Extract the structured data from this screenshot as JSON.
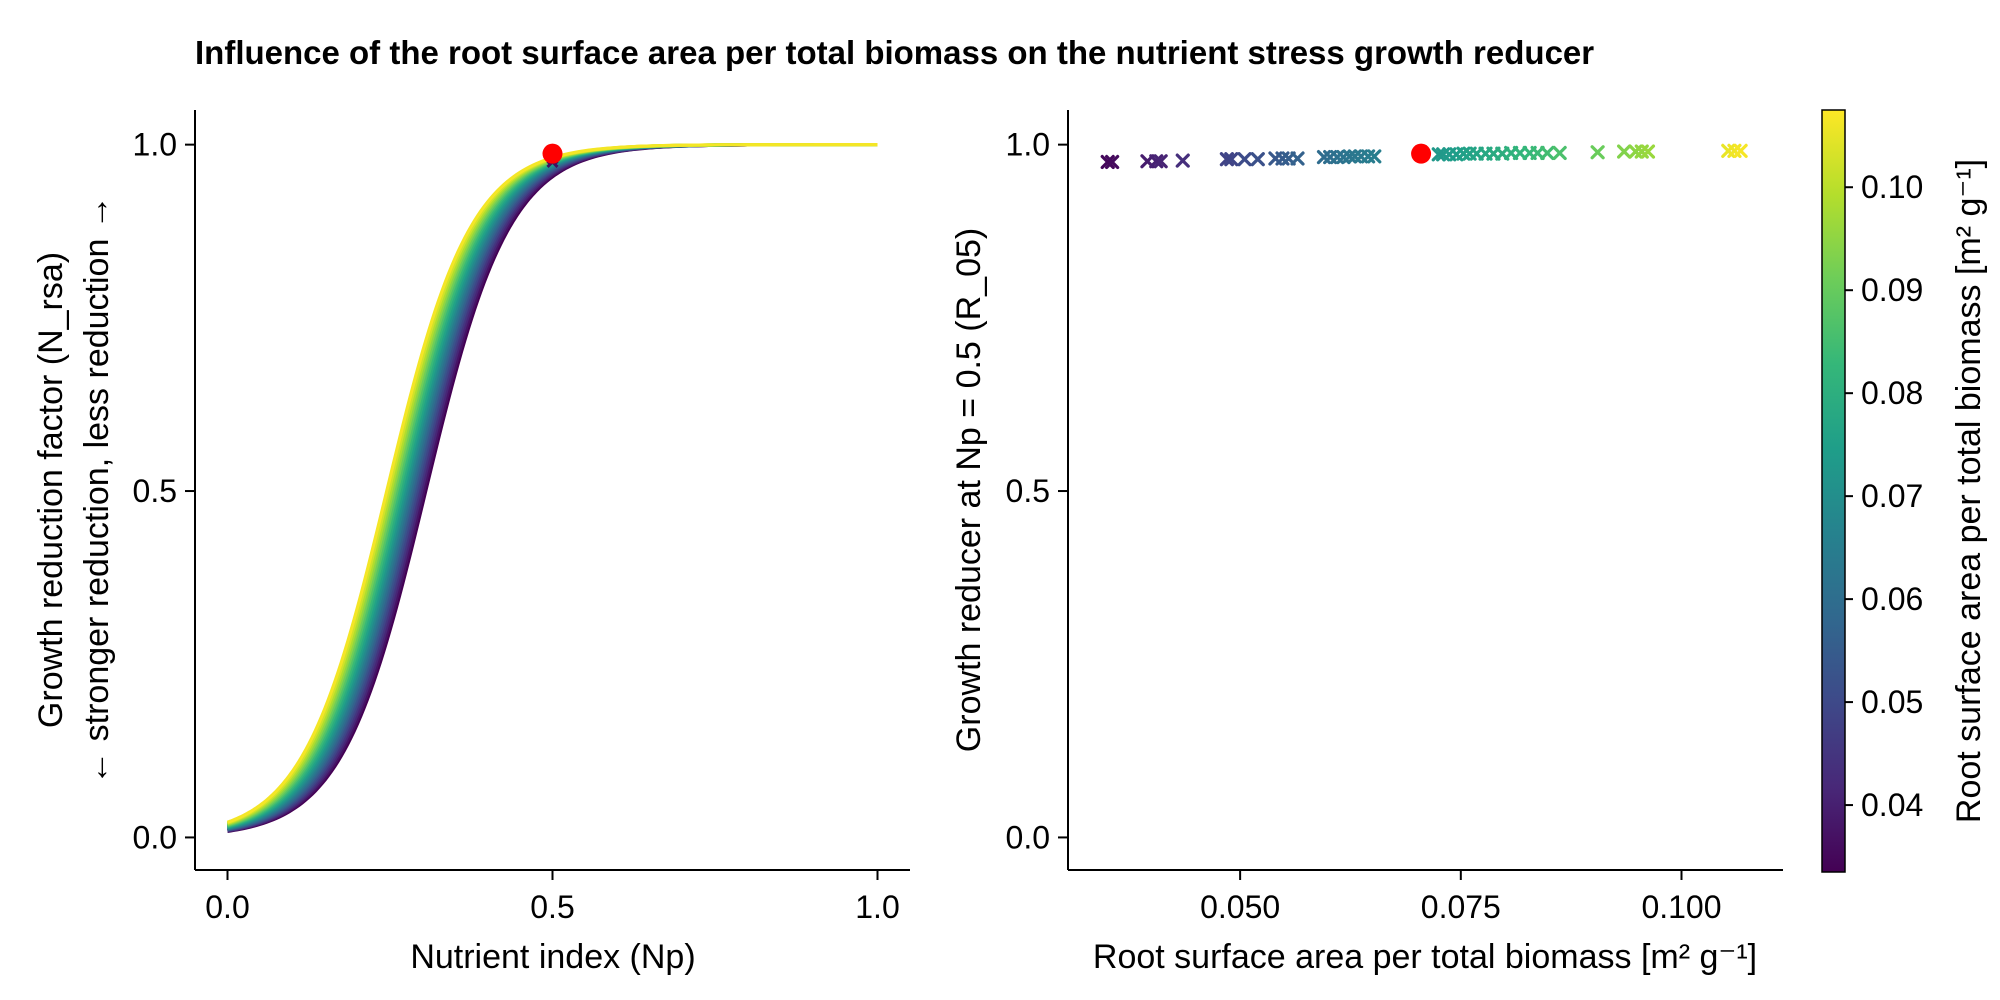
{
  "figure": {
    "title": "Influence of the root surface area per total biomass on the nutrient stress growth reducer"
  },
  "colors": {
    "highlight": "#ff0000",
    "axis": "#000000",
    "colormap": "viridis"
  },
  "chart_data": [
    {
      "type": "line",
      "panel": "left",
      "xlabel": "Nutrient index (Np)",
      "ylabel_line1": "Growth reduction factor (N_rsa)",
      "ylabel_line2": "← stronger reduction, less reduction →",
      "xlim": [
        -0.05,
        1.05
      ],
      "ylim": [
        -0.047,
        1.05
      ],
      "xticks": [
        0.0,
        0.5,
        1.0
      ],
      "xtick_labels": [
        "0.0",
        "0.5",
        "1.0"
      ],
      "yticks": [
        0.0,
        0.5,
        1.0
      ],
      "ytick_labels": [
        "0.0",
        "0.5",
        "1.0"
      ],
      "grid": false,
      "curve_model": "logistic",
      "series_count": 20,
      "rsa_range": [
        0.0335,
        0.1065
      ],
      "logistic_midpoint_range": [
        0.305,
        0.245
      ],
      "logistic_slope": 15.5,
      "highlight_point": {
        "x": 0.5,
        "y": 0.987
      },
      "cross_markers": [
        {
          "x": 0.5,
          "y": 0.975
        },
        {
          "x": 0.5,
          "y": 0.98
        },
        {
          "x": 0.5,
          "y": 0.985
        }
      ]
    },
    {
      "type": "scatter",
      "panel": "right",
      "marker": "x",
      "xlabel": "Root surface area per total biomass [m² g⁻¹]",
      "ylabel": "Growth reducer at Np = 0.5 (R_05)",
      "xlim": [
        0.0305,
        0.1115
      ],
      "ylim": [
        -0.047,
        1.05
      ],
      "xticks": [
        0.05,
        0.075,
        0.1
      ],
      "xtick_labels": [
        "0.050",
        "0.075",
        "0.100"
      ],
      "yticks": [
        0.0,
        0.5,
        1.0
      ],
      "ytick_labels": [
        "0.0",
        "0.5",
        "1.0"
      ],
      "grid": false,
      "x": [
        0.035,
        0.0355,
        0.0395,
        0.0405,
        0.041,
        0.0435,
        0.0485,
        0.049,
        0.0505,
        0.052,
        0.054,
        0.0548,
        0.0555,
        0.0565,
        0.0595,
        0.0602,
        0.061,
        0.0617,
        0.0624,
        0.063,
        0.0637,
        0.0645,
        0.0652,
        0.0725,
        0.073,
        0.0737,
        0.0745,
        0.0753,
        0.076,
        0.0768,
        0.0778,
        0.0787,
        0.0797,
        0.0807,
        0.0817,
        0.0828,
        0.0837,
        0.0848,
        0.0862,
        0.0905,
        0.0935,
        0.0948,
        0.0955,
        0.0962,
        0.1053,
        0.106,
        0.1067
      ],
      "y": [
        0.975,
        0.975,
        0.976,
        0.976,
        0.976,
        0.977,
        0.979,
        0.979,
        0.979,
        0.979,
        0.98,
        0.98,
        0.98,
        0.98,
        0.982,
        0.982,
        0.982,
        0.982,
        0.983,
        0.983,
        0.983,
        0.983,
        0.983,
        0.986,
        0.986,
        0.986,
        0.986,
        0.987,
        0.987,
        0.987,
        0.987,
        0.987,
        0.987,
        0.988,
        0.988,
        0.988,
        0.988,
        0.988,
        0.988,
        0.989,
        0.99,
        0.99,
        0.99,
        0.99,
        0.991,
        0.991,
        0.991
      ],
      "highlight_point": {
        "x": 0.0705,
        "y": 0.987
      }
    }
  ],
  "colorbar": {
    "label": "Root surface area per total biomass [m² g⁻¹]",
    "range": [
      0.0335,
      0.1075
    ],
    "ticks": [
      0.04,
      0.05,
      0.06,
      0.07,
      0.08,
      0.09,
      0.1
    ],
    "tick_labels": [
      "0.04",
      "0.05",
      "0.06",
      "0.07",
      "0.08",
      "0.09",
      "0.10"
    ]
  }
}
